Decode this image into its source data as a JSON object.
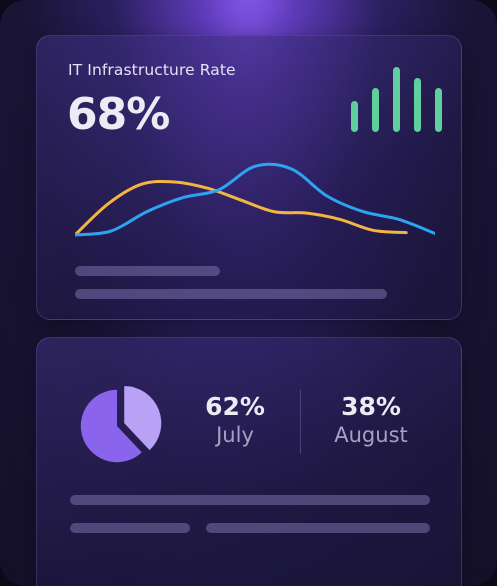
{
  "infrastructure_card": {
    "title": "IT Infrastructure Rate",
    "percent": "68%",
    "mini_bar_chart": {
      "color": "#5ecf9d",
      "relative_levels": [
        0.45,
        0.65,
        0.95,
        0.8,
        0.65
      ]
    },
    "line_chart": {
      "type": "line",
      "series": [
        {
          "color": "#f2b640",
          "values": [
            0,
            40,
            65,
            68,
            60,
            45,
            30,
            28,
            20,
            6,
            3
          ]
        },
        {
          "color": "#2ea3f2",
          "values": [
            0,
            5,
            30,
            48,
            58,
            88,
            85,
            50,
            30,
            20,
            2
          ]
        }
      ]
    }
  },
  "split_card": {
    "pie": {
      "type": "pie",
      "slices": [
        {
          "value": 62,
          "color": "#8a64ec"
        },
        {
          "value": 38,
          "color": "#b9a2f5",
          "exploded": true
        }
      ]
    },
    "stats": [
      {
        "value": "62%",
        "label": "July"
      },
      {
        "value": "38%",
        "label": "August"
      }
    ]
  },
  "colors": {
    "background_glow": "#8a5cf2",
    "card_background": "#2a2160",
    "text_primary": "#ecebf4",
    "text_secondary": "#a6a1c4",
    "placeholder_bar": "#6f6a9e"
  }
}
